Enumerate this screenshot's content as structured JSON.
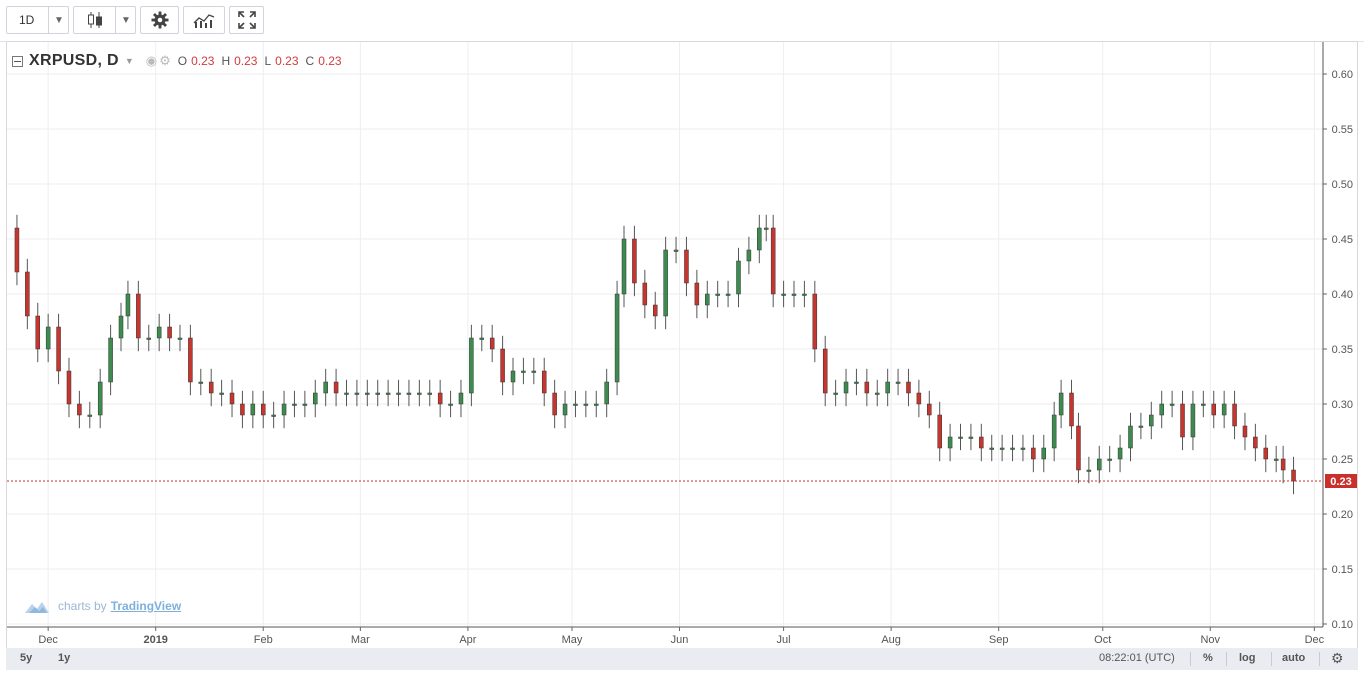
{
  "toolbar": {
    "interval_label": "1D",
    "chart_type_icon": "candles-icon",
    "settings_icon": "gear-icon",
    "indicators_icon": "indicators-icon",
    "fullscreen_icon": "fullscreen-icon"
  },
  "legend": {
    "symbol": "XRPUSD, D",
    "open_label": "O",
    "open": "0.23",
    "high_label": "H",
    "high": "0.23",
    "low_label": "L",
    "low": "0.23",
    "close_label": "C",
    "close": "0.23"
  },
  "watermark": {
    "prefix": "charts by",
    "brand": "TradingView"
  },
  "statusbar": {
    "range_5y": "5y",
    "range_1y": "1y",
    "time": "08:22:01 (UTC)",
    "percent": "%",
    "log": "log",
    "auto": "auto"
  },
  "colors": {
    "up": "#3d8c4f",
    "down": "#c7352e",
    "wick": "#555555",
    "last_price_line": "#c9302c"
  },
  "chart_data": {
    "type": "candlestick",
    "title": "XRPUSD, D",
    "ylim": [
      0.1,
      0.6
    ],
    "y_ticks": [
      "0.10",
      "0.15",
      "0.20",
      "0.25",
      "0.30",
      "0.35",
      "0.40",
      "0.45",
      "0.50",
      "0.55",
      "0.60"
    ],
    "x_labels": [
      "Dec",
      "2019",
      "Feb",
      "Mar",
      "Apr",
      "May",
      "Jun",
      "Jul",
      "Aug",
      "Sep",
      "Oct",
      "Nov",
      "Dec"
    ],
    "x_range": [
      "2018-11-20",
      "2019-11-26"
    ],
    "last_price": 0.23,
    "last_price_label": "0.23",
    "grid": true,
    "close_series": [
      [
        "2018-11-20",
        0.46
      ],
      [
        "2018-11-22",
        0.42
      ],
      [
        "2018-11-25",
        0.38
      ],
      [
        "2018-11-28",
        0.35
      ],
      [
        "2018-12-01",
        0.37
      ],
      [
        "2018-12-04",
        0.33
      ],
      [
        "2018-12-07",
        0.3
      ],
      [
        "2018-12-10",
        0.29
      ],
      [
        "2018-12-13",
        0.29
      ],
      [
        "2018-12-16",
        0.32
      ],
      [
        "2018-12-19",
        0.36
      ],
      [
        "2018-12-22",
        0.38
      ],
      [
        "2018-12-24",
        0.4
      ],
      [
        "2018-12-27",
        0.36
      ],
      [
        "2018-12-30",
        0.36
      ],
      [
        "2019-01-02",
        0.37
      ],
      [
        "2019-01-05",
        0.36
      ],
      [
        "2019-01-08",
        0.36
      ],
      [
        "2019-01-11",
        0.32
      ],
      [
        "2019-01-14",
        0.32
      ],
      [
        "2019-01-17",
        0.31
      ],
      [
        "2019-01-20",
        0.31
      ],
      [
        "2019-01-23",
        0.3
      ],
      [
        "2019-01-26",
        0.29
      ],
      [
        "2019-01-29",
        0.3
      ],
      [
        "2019-02-01",
        0.29
      ],
      [
        "2019-02-04",
        0.29
      ],
      [
        "2019-02-07",
        0.3
      ],
      [
        "2019-02-10",
        0.3
      ],
      [
        "2019-02-13",
        0.3
      ],
      [
        "2019-02-16",
        0.31
      ],
      [
        "2019-02-19",
        0.32
      ],
      [
        "2019-02-22",
        0.31
      ],
      [
        "2019-02-25",
        0.31
      ],
      [
        "2019-02-28",
        0.31
      ],
      [
        "2019-03-03",
        0.31
      ],
      [
        "2019-03-06",
        0.31
      ],
      [
        "2019-03-09",
        0.31
      ],
      [
        "2019-03-12",
        0.31
      ],
      [
        "2019-03-15",
        0.31
      ],
      [
        "2019-03-18",
        0.31
      ],
      [
        "2019-03-21",
        0.31
      ],
      [
        "2019-03-24",
        0.3
      ],
      [
        "2019-03-27",
        0.3
      ],
      [
        "2019-03-30",
        0.31
      ],
      [
        "2019-04-02",
        0.36
      ],
      [
        "2019-04-05",
        0.36
      ],
      [
        "2019-04-08",
        0.35
      ],
      [
        "2019-04-11",
        0.32
      ],
      [
        "2019-04-14",
        0.33
      ],
      [
        "2019-04-17",
        0.33
      ],
      [
        "2019-04-20",
        0.33
      ],
      [
        "2019-04-23",
        0.31
      ],
      [
        "2019-04-26",
        0.29
      ],
      [
        "2019-04-29",
        0.3
      ],
      [
        "2019-05-02",
        0.3
      ],
      [
        "2019-05-05",
        0.3
      ],
      [
        "2019-05-08",
        0.3
      ],
      [
        "2019-05-11",
        0.32
      ],
      [
        "2019-05-14",
        0.4
      ],
      [
        "2019-05-16",
        0.45
      ],
      [
        "2019-05-19",
        0.41
      ],
      [
        "2019-05-22",
        0.39
      ],
      [
        "2019-05-25",
        0.38
      ],
      [
        "2019-05-28",
        0.44
      ],
      [
        "2019-05-31",
        0.44
      ],
      [
        "2019-06-03",
        0.41
      ],
      [
        "2019-06-06",
        0.39
      ],
      [
        "2019-06-09",
        0.4
      ],
      [
        "2019-06-12",
        0.4
      ],
      [
        "2019-06-15",
        0.4
      ],
      [
        "2019-06-18",
        0.43
      ],
      [
        "2019-06-21",
        0.44
      ],
      [
        "2019-06-24",
        0.46
      ],
      [
        "2019-06-26",
        0.46
      ],
      [
        "2019-06-28",
        0.4
      ],
      [
        "2019-07-01",
        0.4
      ],
      [
        "2019-07-04",
        0.4
      ],
      [
        "2019-07-07",
        0.4
      ],
      [
        "2019-07-10",
        0.35
      ],
      [
        "2019-07-13",
        0.31
      ],
      [
        "2019-07-16",
        0.31
      ],
      [
        "2019-07-19",
        0.32
      ],
      [
        "2019-07-22",
        0.32
      ],
      [
        "2019-07-25",
        0.31
      ],
      [
        "2019-07-28",
        0.31
      ],
      [
        "2019-07-31",
        0.32
      ],
      [
        "2019-08-03",
        0.32
      ],
      [
        "2019-08-06",
        0.31
      ],
      [
        "2019-08-09",
        0.3
      ],
      [
        "2019-08-12",
        0.29
      ],
      [
        "2019-08-15",
        0.26
      ],
      [
        "2019-08-18",
        0.27
      ],
      [
        "2019-08-21",
        0.27
      ],
      [
        "2019-08-24",
        0.27
      ],
      [
        "2019-08-27",
        0.26
      ],
      [
        "2019-08-30",
        0.26
      ],
      [
        "2019-09-02",
        0.26
      ],
      [
        "2019-09-05",
        0.26
      ],
      [
        "2019-09-08",
        0.26
      ],
      [
        "2019-09-11",
        0.25
      ],
      [
        "2019-09-14",
        0.26
      ],
      [
        "2019-09-17",
        0.29
      ],
      [
        "2019-09-19",
        0.31
      ],
      [
        "2019-09-22",
        0.28
      ],
      [
        "2019-09-24",
        0.24
      ],
      [
        "2019-09-27",
        0.24
      ],
      [
        "2019-09-30",
        0.25
      ],
      [
        "2019-10-03",
        0.25
      ],
      [
        "2019-10-06",
        0.26
      ],
      [
        "2019-10-09",
        0.28
      ],
      [
        "2019-10-12",
        0.28
      ],
      [
        "2019-10-15",
        0.29
      ],
      [
        "2019-10-18",
        0.3
      ],
      [
        "2019-10-21",
        0.3
      ],
      [
        "2019-10-24",
        0.27
      ],
      [
        "2019-10-27",
        0.3
      ],
      [
        "2019-10-30",
        0.3
      ],
      [
        "2019-11-02",
        0.29
      ],
      [
        "2019-11-05",
        0.3
      ],
      [
        "2019-11-08",
        0.28
      ],
      [
        "2019-11-11",
        0.27
      ],
      [
        "2019-11-14",
        0.26
      ],
      [
        "2019-11-17",
        0.25
      ],
      [
        "2019-11-20",
        0.25
      ],
      [
        "2019-11-22",
        0.24
      ],
      [
        "2019-11-25",
        0.23
      ]
    ]
  }
}
